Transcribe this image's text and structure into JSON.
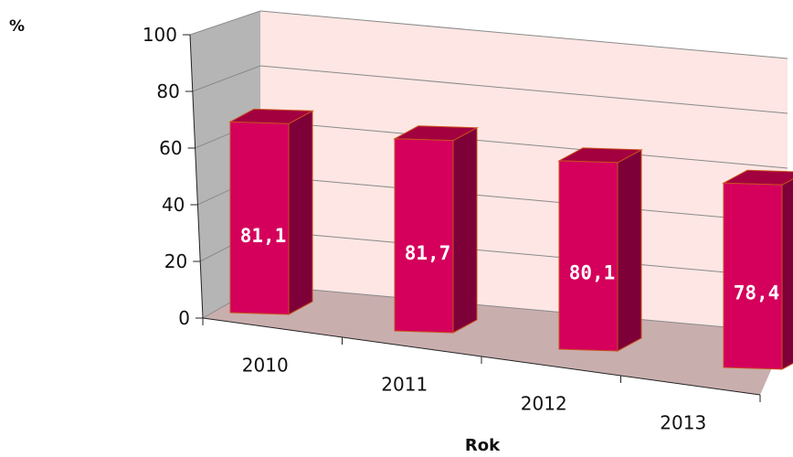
{
  "chart_data": {
    "type": "bar",
    "title": "",
    "ylabel": "%",
    "xlabel": "Rok",
    "ylim": [
      0,
      100
    ],
    "yticks": [
      0,
      20,
      40,
      60,
      80,
      100
    ],
    "categories": [
      "2010",
      "2011",
      "2012",
      "2013"
    ],
    "values": [
      81.1,
      81.7,
      80.1,
      78.4
    ],
    "data_labels": [
      "81,1",
      "81,7",
      "80,1",
      "78,4"
    ],
    "grid": true,
    "legend": "none",
    "colors": {
      "bar_front": "#d4005c",
      "bar_side": "#7e0038",
      "bar_top": "#a3003f",
      "bar_edge": "#c8501e",
      "back_wall": "#fde6e3",
      "side_wall": "#b5b5b5",
      "floor": "#c9aeae",
      "gridline": "#8a8a8a"
    }
  }
}
